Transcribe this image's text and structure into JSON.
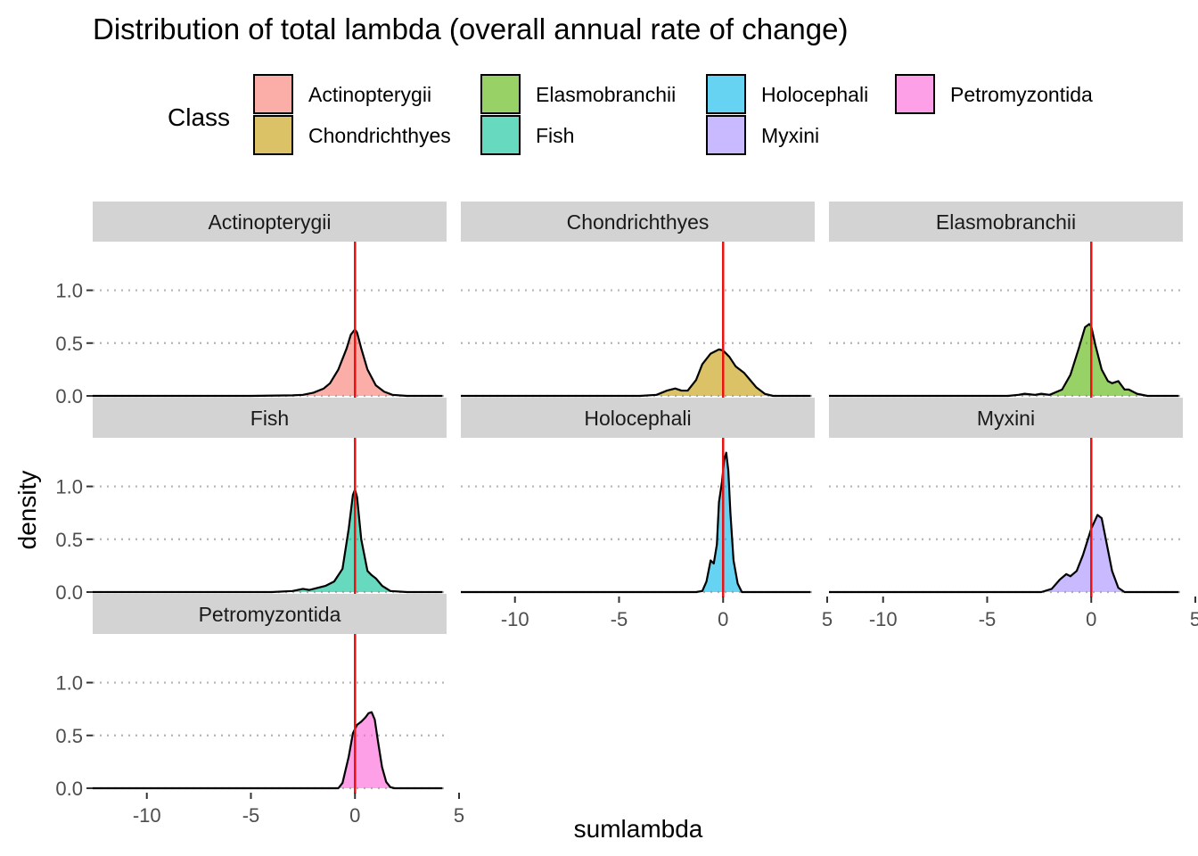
{
  "chart_data": {
    "type": "area",
    "title": "Distribution of total lambda (overall annual rate of change)",
    "xlabel": "sumlambda",
    "ylabel": "density",
    "xlim": [
      -12.6,
      4.4
    ],
    "ylim": [
      0,
      1.3
    ],
    "x_ticks": [
      -10,
      -5,
      0,
      5
    ],
    "y_ticks": [
      0.0,
      0.5,
      1.0
    ],
    "x_tick_labels": [
      "-10",
      "-5",
      "0",
      "5"
    ],
    "y_tick_labels": [
      "0.0",
      "0.5",
      "1.0"
    ],
    "grid": "horizontal dotted",
    "reference_line": {
      "x": 0,
      "color": "#ee1111"
    },
    "legend": {
      "title": "Class",
      "position": "top",
      "entries": [
        {
          "label": "Actinopterygii",
          "color": "#F8766D"
        },
        {
          "label": "Chondrichthyes",
          "color": "#C49A00"
        },
        {
          "label": "Elasmobranchii",
          "color": "#53B400"
        },
        {
          "label": "Fish",
          "color": "#00C094"
        },
        {
          "label": "Holocephali",
          "color": "#00B6EB"
        },
        {
          "label": "Myxini",
          "color": "#A58AFF"
        },
        {
          "label": "Petromyzontida",
          "color": "#FB61D7"
        }
      ]
    },
    "series": [
      {
        "name": "Actinopterygii",
        "color": "#F8766D",
        "x": [
          -12.6,
          -5,
          -3,
          -2.5,
          -2,
          -1.5,
          -1.2,
          -0.8,
          -0.4,
          -0.2,
          0,
          0.1,
          0.3,
          0.6,
          1,
          1.4,
          1.8,
          2.5,
          4.2
        ],
        "y": [
          0,
          0,
          0.005,
          0.01,
          0.03,
          0.07,
          0.12,
          0.25,
          0.45,
          0.58,
          0.63,
          0.6,
          0.45,
          0.25,
          0.1,
          0.04,
          0.01,
          0,
          0
        ]
      },
      {
        "name": "Chondrichthyes",
        "color": "#C49A00",
        "x": [
          -12.6,
          -4,
          -3.2,
          -2.7,
          -2.3,
          -2,
          -1.7,
          -1.3,
          -1,
          -0.6,
          -0.2,
          0,
          0.3,
          0.6,
          1,
          1.3,
          1.6,
          2,
          2.4,
          4.2
        ],
        "y": [
          0,
          0,
          0.01,
          0.05,
          0.07,
          0.05,
          0.05,
          0.15,
          0.3,
          0.4,
          0.44,
          0.43,
          0.37,
          0.28,
          0.22,
          0.15,
          0.08,
          0.02,
          0,
          0
        ]
      },
      {
        "name": "Elasmobranchii",
        "color": "#53B400",
        "x": [
          -12.6,
          -4,
          -3.5,
          -3.2,
          -2.7,
          -2.4,
          -2,
          -1.4,
          -1,
          -0.6,
          -0.3,
          -0.1,
          0,
          0.2,
          0.5,
          0.8,
          1,
          1.3,
          1.6,
          1.8,
          2.2,
          2.7,
          4.2
        ],
        "y": [
          0,
          0,
          0.01,
          0.02,
          0.01,
          0.02,
          0.01,
          0.06,
          0.2,
          0.45,
          0.65,
          0.68,
          0.66,
          0.48,
          0.25,
          0.14,
          0.12,
          0.14,
          0.06,
          0.06,
          0.02,
          0,
          0
        ]
      },
      {
        "name": "Fish",
        "color": "#00C094",
        "x": [
          -12.6,
          -4,
          -3,
          -2.5,
          -2.2,
          -1.8,
          -1.4,
          -1,
          -0.6,
          -0.3,
          -0.1,
          0,
          0.1,
          0.3,
          0.6,
          0.8,
          1,
          1.3,
          1.7,
          2.5,
          4.2
        ],
        "y": [
          0,
          0,
          0.01,
          0.03,
          0.02,
          0.04,
          0.06,
          0.1,
          0.22,
          0.6,
          0.92,
          0.97,
          0.9,
          0.5,
          0.2,
          0.16,
          0.13,
          0.06,
          0.01,
          0,
          0
        ]
      },
      {
        "name": "Holocephali",
        "color": "#00B6EB",
        "x": [
          -12.6,
          -1.3,
          -1,
          -0.8,
          -0.6,
          -0.45,
          -0.3,
          -0.2,
          -0.05,
          0.05,
          0.15,
          0.25,
          0.35,
          0.5,
          0.7,
          0.9,
          4.2
        ],
        "y": [
          0,
          0,
          0.01,
          0.1,
          0.3,
          0.27,
          0.45,
          0.85,
          1.05,
          1.25,
          1.32,
          1.15,
          0.75,
          0.3,
          0.08,
          0,
          0
        ]
      },
      {
        "name": "Myxini",
        "color": "#A58AFF",
        "x": [
          -12.6,
          -2.4,
          -1.9,
          -1.5,
          -1.2,
          -1,
          -0.7,
          -0.4,
          0,
          0.3,
          0.5,
          0.7,
          1,
          1.3,
          1.6,
          4.2
        ],
        "y": [
          0,
          0,
          0.03,
          0.12,
          0.17,
          0.15,
          0.2,
          0.35,
          0.6,
          0.73,
          0.7,
          0.5,
          0.2,
          0.04,
          0,
          0
        ]
      },
      {
        "name": "Petromyzontida",
        "color": "#FB61D7",
        "x": [
          -12.6,
          -0.8,
          -0.6,
          -0.3,
          -0.1,
          0.1,
          0.3,
          0.5,
          0.65,
          0.8,
          0.95,
          1.1,
          1.3,
          1.5,
          1.7,
          1.9,
          4.2
        ],
        "y": [
          0,
          0,
          0.05,
          0.3,
          0.52,
          0.6,
          0.63,
          0.67,
          0.71,
          0.72,
          0.65,
          0.45,
          0.2,
          0.06,
          0.01,
          0,
          0
        ]
      }
    ]
  }
}
